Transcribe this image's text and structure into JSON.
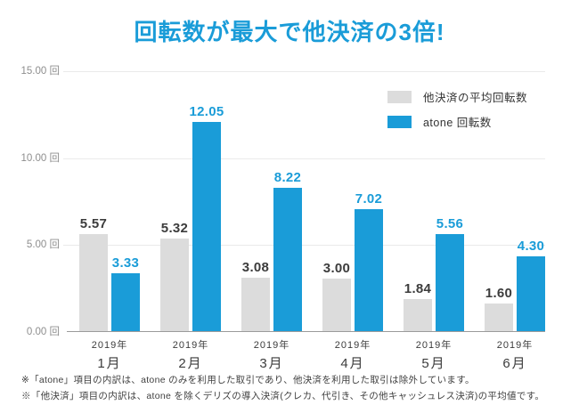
{
  "title": "回転数が最大で他決済の3倍!",
  "legend": {
    "items": [
      {
        "label": "他決済の平均回転数",
        "color": "#DCDCDC"
      },
      {
        "label": "atone 回転数",
        "color": "#1A9CD8"
      }
    ]
  },
  "chart_data": {
    "type": "bar",
    "title": "回転数が最大で他決済の3倍!",
    "categories": [
      {
        "year": "2019年",
        "month": "1月"
      },
      {
        "year": "2019年",
        "month": "2月"
      },
      {
        "year": "2019年",
        "month": "3月"
      },
      {
        "year": "2019年",
        "month": "4月"
      },
      {
        "year": "2019年",
        "month": "5月"
      },
      {
        "year": "2019年",
        "month": "6月"
      }
    ],
    "series": [
      {
        "name": "他決済の平均回転数",
        "color": "#DCDCDC",
        "label_color": "#3C3C3C",
        "values": [
          5.57,
          5.32,
          3.08,
          3.0,
          1.84,
          1.6
        ]
      },
      {
        "name": "atone 回転数",
        "color": "#1A9CD8",
        "label_color": "#1A9CD8",
        "values": [
          3.33,
          12.05,
          8.22,
          7.02,
          5.56,
          4.3
        ]
      }
    ],
    "ylim": [
      0,
      15
    ],
    "yticks": [
      {
        "value": 0,
        "label": "0.00 回"
      },
      {
        "value": 5,
        "label": "5.00 回"
      },
      {
        "value": 10,
        "label": "10.00 回"
      },
      {
        "value": 15,
        "label": "15.00 回"
      }
    ],
    "grid": true,
    "legend_position": "top-right"
  },
  "footnotes": [
    "※「atone」項目の内訳は、atone のみを利用した取引であり、他決済を利用した取引は除外しています。",
    "※「他決済」項目の内訳は、atone を除くデリズの導入決済(クレカ、代引き、その他キャッシュレス決済)の平均値です。"
  ],
  "colors": {
    "accent_blue": "#1A9CD8",
    "bar_gray": "#DCDCDC",
    "grid": "#EAEAEA",
    "axis": "#9B9B9B",
    "tick_text": "#8E8E8E",
    "text_dark": "#3C3C3C"
  }
}
